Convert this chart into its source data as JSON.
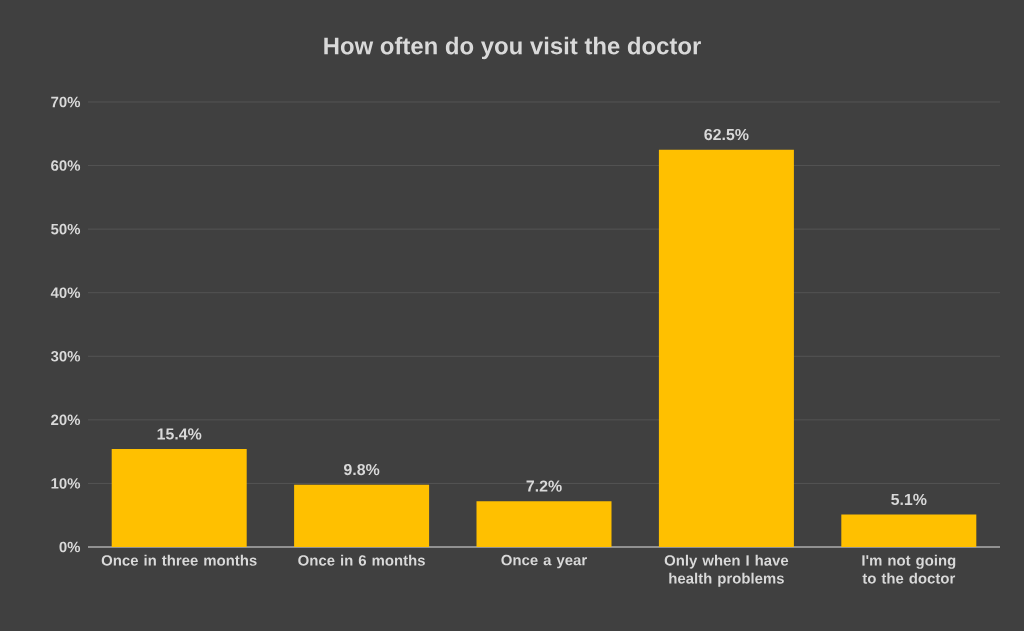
{
  "chart_data": {
    "type": "bar",
    "title": "How often do you visit the doctor",
    "categories": [
      "Once in three months",
      "Once in 6 months",
      "Once a year",
      "Only when I have health problems",
      "I'm not going to the doctor"
    ],
    "values": [
      15.4,
      9.8,
      7.2,
      62.5,
      5.1
    ],
    "value_labels": [
      "15.4%",
      "9.8%",
      "7.2%",
      "62.5%",
      "5.1%"
    ],
    "color": "#ffc000",
    "ylim": [
      0,
      70
    ],
    "yticks": [
      {
        "value": 0,
        "label": "0%"
      },
      {
        "value": 10,
        "label": "10%"
      },
      {
        "value": 20,
        "label": "20%"
      },
      {
        "value": 30,
        "label": "30%"
      },
      {
        "value": 40,
        "label": "40%"
      },
      {
        "value": 50,
        "label": "50%"
      },
      {
        "value": 60,
        "label": "60%"
      },
      {
        "value": 70,
        "label": "70%"
      }
    ],
    "grid": "y"
  }
}
